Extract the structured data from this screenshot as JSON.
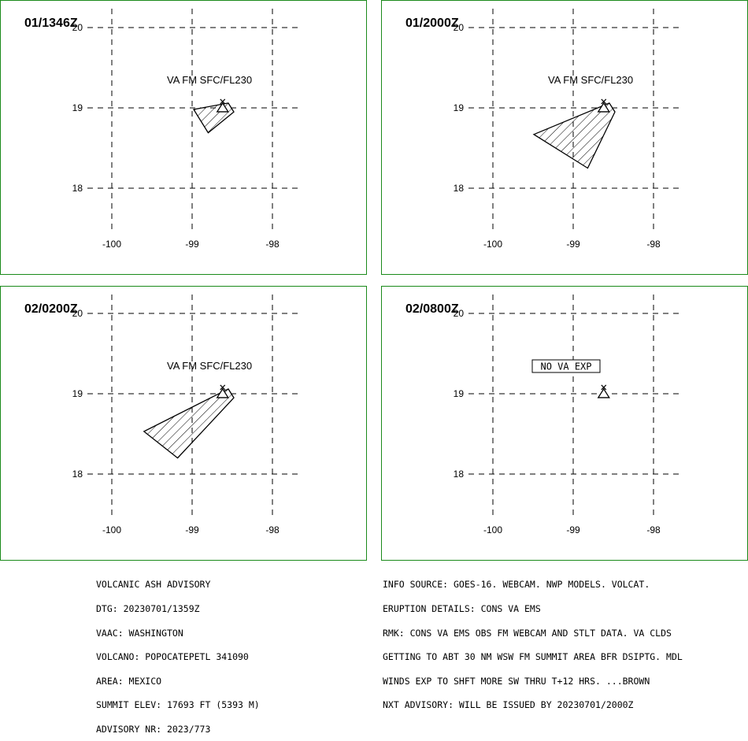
{
  "panels": [
    {
      "time": "01/1346Z",
      "label": "VA FM SFC/FL230",
      "boxed": false,
      "polygon": [
        [
          -98.55,
          19.06
        ],
        [
          -98.98,
          18.98
        ],
        [
          -98.8,
          18.69
        ],
        [
          -98.48,
          18.95
        ]
      ]
    },
    {
      "time": "01/2000Z",
      "label": "VA FM SFC/FL230",
      "boxed": false,
      "polygon": [
        [
          -98.55,
          19.06
        ],
        [
          -99.49,
          18.67
        ],
        [
          -98.82,
          18.25
        ],
        [
          -98.48,
          18.95
        ]
      ]
    },
    {
      "time": "02/0200Z",
      "label": "VA FM SFC/FL230",
      "boxed": false,
      "polygon": [
        [
          -98.55,
          19.06
        ],
        [
          -99.6,
          18.53
        ],
        [
          -99.18,
          18.2
        ],
        [
          -98.48,
          18.95
        ]
      ]
    },
    {
      "time": "02/0800Z",
      "label": "NO VA EXP",
      "boxed": true,
      "polygon": []
    }
  ],
  "axes": {
    "lon_ticks": [
      -100,
      -99,
      -98
    ],
    "lat_ticks": [
      18,
      19,
      20
    ],
    "lon_labels": [
      "-100",
      "-99",
      "-98"
    ],
    "lat_labels": [
      "18",
      "19",
      "20"
    ]
  },
  "volcano": {
    "lon": -98.62,
    "lat": 19.02
  },
  "advisory_left": [
    "VOLCANIC ASH ADVISORY",
    "DTG: 20230701/1359Z",
    "VAAC: WASHINGTON",
    "VOLCANO: POPOCATEPETL 341090",
    "AREA: MEXICO",
    "SUMMIT ELEV: 17693 FT (5393 M)",
    "ADVISORY NR: 2023/773"
  ],
  "advisory_right": [
    "INFO SOURCE: GOES-16. WEBCAM. NWP MODELS. VOLCAT.",
    "ERUPTION DETAILS: CONS VA EMS",
    "RMK: CONS VA EMS OBS FM WEBCAM AND STLT DATA. VA CLDS",
    "GETTING TO ABT 30 NM WSW FM SUMMIT AREA BFR DSIPTG. MDL",
    "WINDS EXP TO SHFT MORE SW THRU T+12 HRS. ...BROWN",
    "NXT ADVISORY: WILL BE ISSUED BY 20230701/2000Z"
  ]
}
